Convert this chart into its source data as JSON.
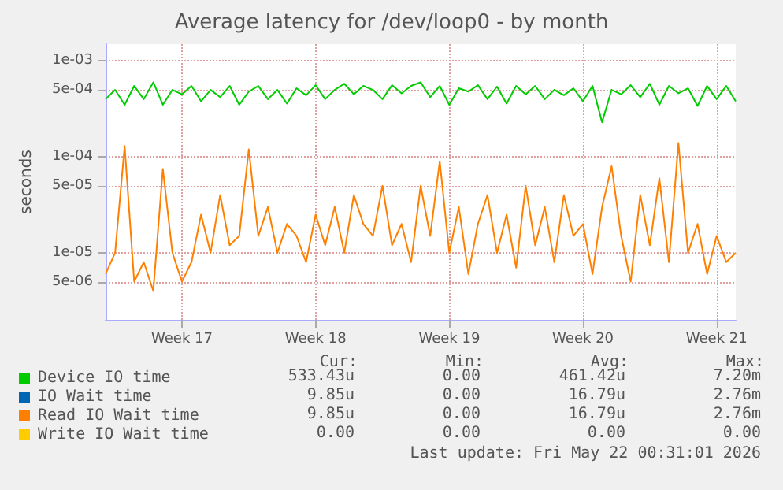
{
  "chart_data": {
    "type": "line",
    "title": "Average latency for /dev/loop0 - by month",
    "ylabel": "seconds",
    "log": "y",
    "grid": true,
    "legend": "bottom",
    "marker": "none",
    "ylim": [
      2e-06,
      0.0015
    ],
    "yticks": [
      {
        "value": 5e-06,
        "label": "5e-06"
      },
      {
        "value": 1e-05,
        "label": "1e-05"
      },
      {
        "value": 5e-05,
        "label": "5e-05"
      },
      {
        "value": 0.0001,
        "label": "1e-04"
      },
      {
        "value": 0.0005,
        "label": "5e-04"
      },
      {
        "value": 0.001,
        "label": "1e-03"
      }
    ],
    "categories": [
      null,
      null,
      null,
      null,
      null,
      null,
      null,
      null,
      "Week 17",
      null,
      null,
      null,
      null,
      null,
      null,
      null,
      null,
      null,
      null,
      null,
      null,
      null,
      "Week 18",
      null,
      null,
      null,
      null,
      null,
      null,
      null,
      null,
      null,
      null,
      null,
      null,
      null,
      "Week 19",
      null,
      null,
      null,
      null,
      null,
      null,
      null,
      null,
      null,
      null,
      null,
      null,
      null,
      "Week 20",
      null,
      null,
      null,
      null,
      null,
      null,
      null,
      null,
      null,
      null,
      null,
      null,
      null,
      "Week 21",
      null,
      null
    ],
    "series": [
      {
        "name": "Device IO time",
        "color": "#00cc00",
        "values": [
          0.0004,
          0.0005,
          0.00035,
          0.00055,
          0.0004,
          0.0006,
          0.00035,
          0.0005,
          0.00045,
          0.00055,
          0.00038,
          0.0005,
          0.00042,
          0.00055,
          0.00035,
          0.00048,
          0.00055,
          0.0004,
          0.0005,
          0.00036,
          0.00052,
          0.00044,
          0.00056,
          0.0004,
          0.0005,
          0.00058,
          0.00045,
          0.00055,
          0.0005,
          0.0004,
          0.00056,
          0.00046,
          0.00055,
          0.0006,
          0.00042,
          0.00055,
          0.00035,
          0.00052,
          0.00048,
          0.00056,
          0.0004,
          0.00054,
          0.00036,
          0.00055,
          0.00045,
          0.00055,
          0.0004,
          0.0005,
          0.00044,
          0.00052,
          0.00038,
          0.00055,
          0.00023,
          0.0005,
          0.00045,
          0.00056,
          0.00042,
          0.00058,
          0.00035,
          0.00055,
          0.00046,
          0.00052,
          0.00034,
          0.00055,
          0.0004,
          0.00055,
          0.00038
        ]
      },
      {
        "name": "IO Wait time",
        "color": "#0066b3",
        "values": [
          null,
          null,
          null,
          null,
          null,
          null,
          null,
          null,
          null,
          null,
          null,
          null,
          null,
          null,
          null,
          null,
          null,
          null,
          null,
          null,
          null,
          null,
          null,
          null,
          null,
          null,
          null,
          null,
          null,
          null,
          null,
          null,
          null,
          null,
          null,
          null,
          null,
          null,
          null,
          null,
          null,
          null,
          null,
          null,
          null,
          null,
          null,
          null,
          null,
          null,
          null,
          null,
          null,
          null,
          null,
          null,
          null,
          null,
          null,
          null,
          null,
          null,
          null,
          null,
          null,
          null,
          null
        ]
      },
      {
        "name": "Read IO Wait time",
        "color": "#ff8000",
        "values": [
          6e-06,
          1e-05,
          0.00013,
          5e-06,
          8e-06,
          4e-06,
          7.5e-05,
          1e-05,
          5e-06,
          8e-06,
          2.5e-05,
          1e-05,
          4e-05,
          1.2e-05,
          1.5e-05,
          0.00012,
          1.5e-05,
          3e-05,
          1e-05,
          2e-05,
          1.5e-05,
          8e-06,
          2.5e-05,
          1.2e-05,
          3e-05,
          1e-05,
          4e-05,
          2e-05,
          1.5e-05,
          5e-05,
          1.2e-05,
          2e-05,
          8e-06,
          5e-05,
          1.5e-05,
          9e-05,
          1e-05,
          3e-05,
          6e-06,
          2e-05,
          4e-05,
          1e-05,
          2.5e-05,
          7e-06,
          5e-05,
          1.2e-05,
          3e-05,
          8e-06,
          4e-05,
          1.5e-05,
          2e-05,
          6e-06,
          3e-05,
          8e-05,
          1.5e-05,
          5e-06,
          4e-05,
          1.2e-05,
          6e-05,
          8e-06,
          0.00014,
          1e-05,
          2e-05,
          6e-06,
          1.5e-05,
          8e-06,
          1e-05
        ]
      },
      {
        "name": "Write IO Wait time",
        "color": "#ffcc00",
        "values": [
          null,
          null,
          null,
          null,
          null,
          null,
          null,
          null,
          null,
          null,
          null,
          null,
          null,
          null,
          null,
          null,
          null,
          null,
          null,
          null,
          null,
          null,
          null,
          null,
          null,
          null,
          null,
          null,
          null,
          null,
          null,
          null,
          null,
          null,
          null,
          null,
          null,
          null,
          null,
          null,
          null,
          null,
          null,
          null,
          null,
          null,
          null,
          null,
          null,
          null,
          null,
          null,
          null,
          null,
          null,
          null,
          null,
          null,
          null,
          null,
          null,
          null,
          null,
          null,
          null,
          null,
          null
        ]
      }
    ],
    "annotations": [
      "Cur:",
      "Min:",
      "Avg:",
      "Max:",
      "533.43u",
      "0.00",
      "461.42u",
      "7.20m",
      "9.85u",
      "0.00",
      "16.79u",
      "2.76m",
      "9.85u",
      "0.00",
      "16.79u",
      "2.76m",
      "0.00",
      "0.00",
      "0.00",
      "0.00",
      "Last update: Fri May 22 00:31:01 2026"
    ]
  }
}
